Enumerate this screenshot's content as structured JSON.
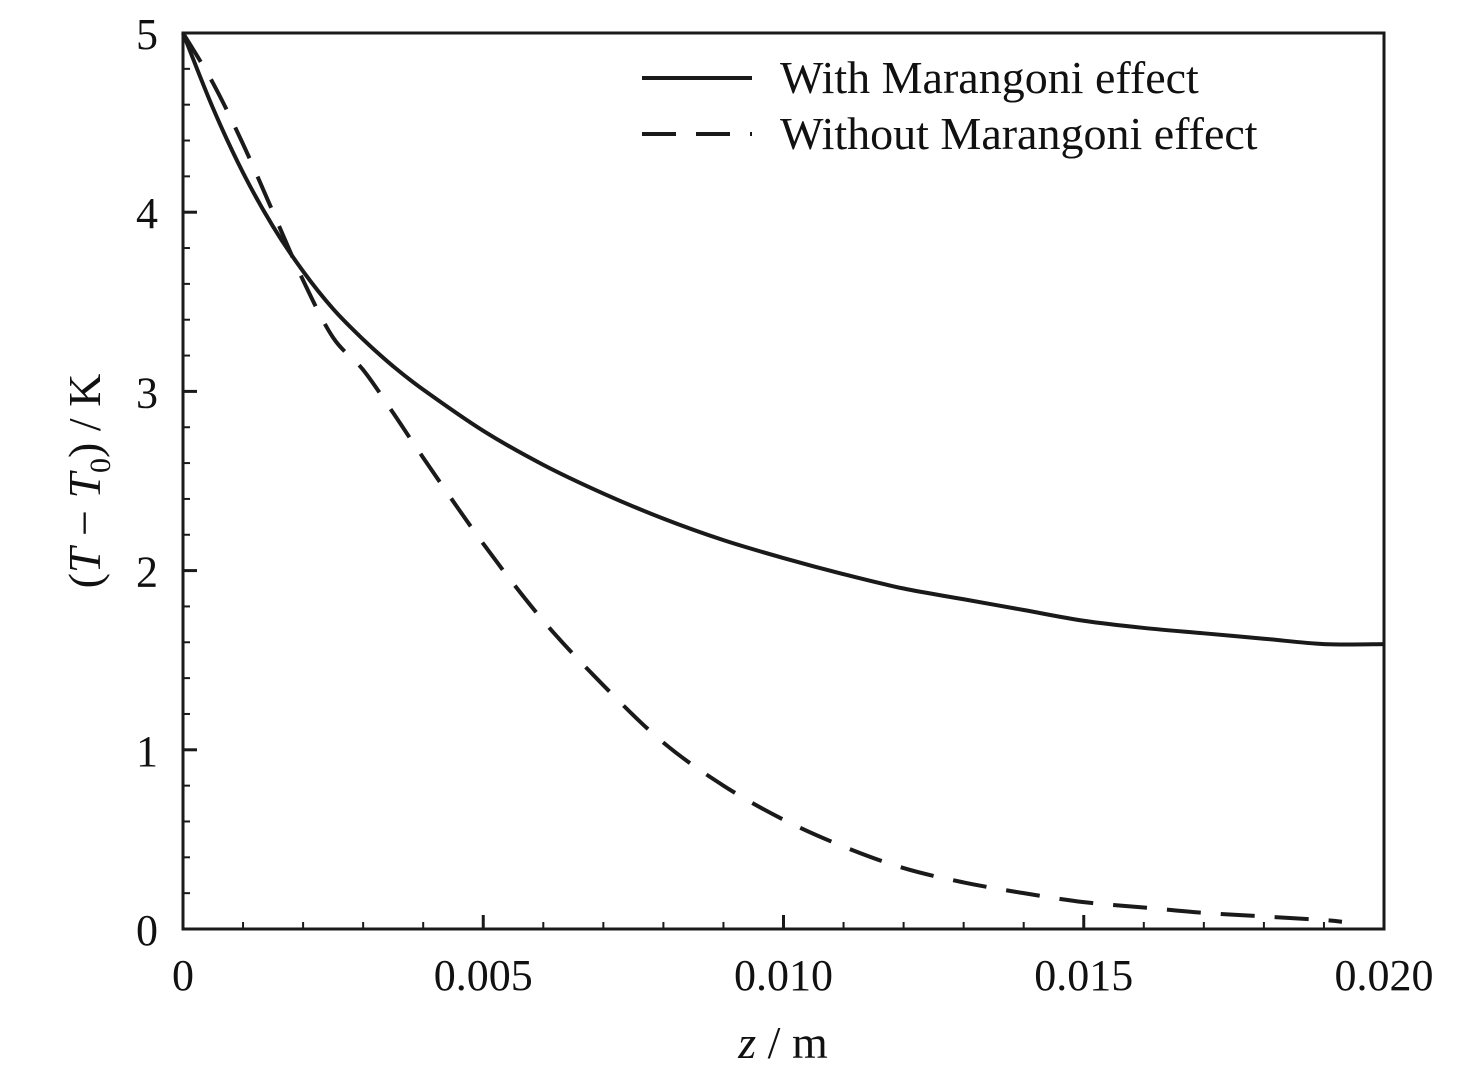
{
  "chart_data": {
    "type": "line",
    "title": "",
    "xlabel": {
      "italic": "z",
      "rest": " / m"
    },
    "ylabel": {
      "open": "(",
      "T": "T",
      "minus": " − ",
      "T0": "T",
      "sub": "0",
      "close": ") / K"
    },
    "xlim": [
      0,
      0.02
    ],
    "ylim": [
      0,
      5
    ],
    "xticks": [
      0,
      0.005,
      0.01,
      0.015,
      0.02
    ],
    "xtick_labels": [
      "0",
      "0.005",
      "0.010",
      "0.015",
      "0.020"
    ],
    "yticks": [
      0,
      1,
      2,
      3,
      4,
      5
    ],
    "ytick_labels": [
      "0",
      "1",
      "2",
      "3",
      "4",
      "5"
    ],
    "legend_position": "top-right",
    "grid": false,
    "series": [
      {
        "name": "With Marangoni effect",
        "style": "solid",
        "color": "#1a1a1a",
        "x": [
          0,
          0.0005,
          0.001,
          0.0015,
          0.002,
          0.0025,
          0.003,
          0.0035,
          0.004,
          0.005,
          0.006,
          0.007,
          0.008,
          0.009,
          0.01,
          0.011,
          0.012,
          0.013,
          0.014,
          0.015,
          0.016,
          0.017,
          0.018,
          0.019,
          0.02
        ],
        "y": [
          5.0,
          4.58,
          4.22,
          3.92,
          3.67,
          3.46,
          3.29,
          3.14,
          3.01,
          2.78,
          2.59,
          2.43,
          2.29,
          2.17,
          2.07,
          1.98,
          1.9,
          1.84,
          1.78,
          1.72,
          1.68,
          1.65,
          1.62,
          1.59,
          1.59
        ]
      },
      {
        "name": "Without Marangoni effect",
        "style": "dashed",
        "color": "#1a1a1a",
        "x": [
          0,
          0.0005,
          0.001,
          0.0015,
          0.002,
          0.0025,
          0.003,
          0.0035,
          0.004,
          0.005,
          0.006,
          0.007,
          0.008,
          0.009,
          0.01,
          0.011,
          0.012,
          0.013,
          0.014,
          0.015,
          0.016,
          0.017,
          0.018,
          0.019,
          0.0193
        ],
        "y": [
          5.0,
          4.72,
          4.38,
          4.0,
          3.62,
          3.3,
          3.12,
          2.88,
          2.63,
          2.15,
          1.72,
          1.36,
          1.04,
          0.8,
          0.61,
          0.46,
          0.34,
          0.26,
          0.2,
          0.15,
          0.12,
          0.09,
          0.07,
          0.05,
          0.04
        ]
      }
    ]
  }
}
